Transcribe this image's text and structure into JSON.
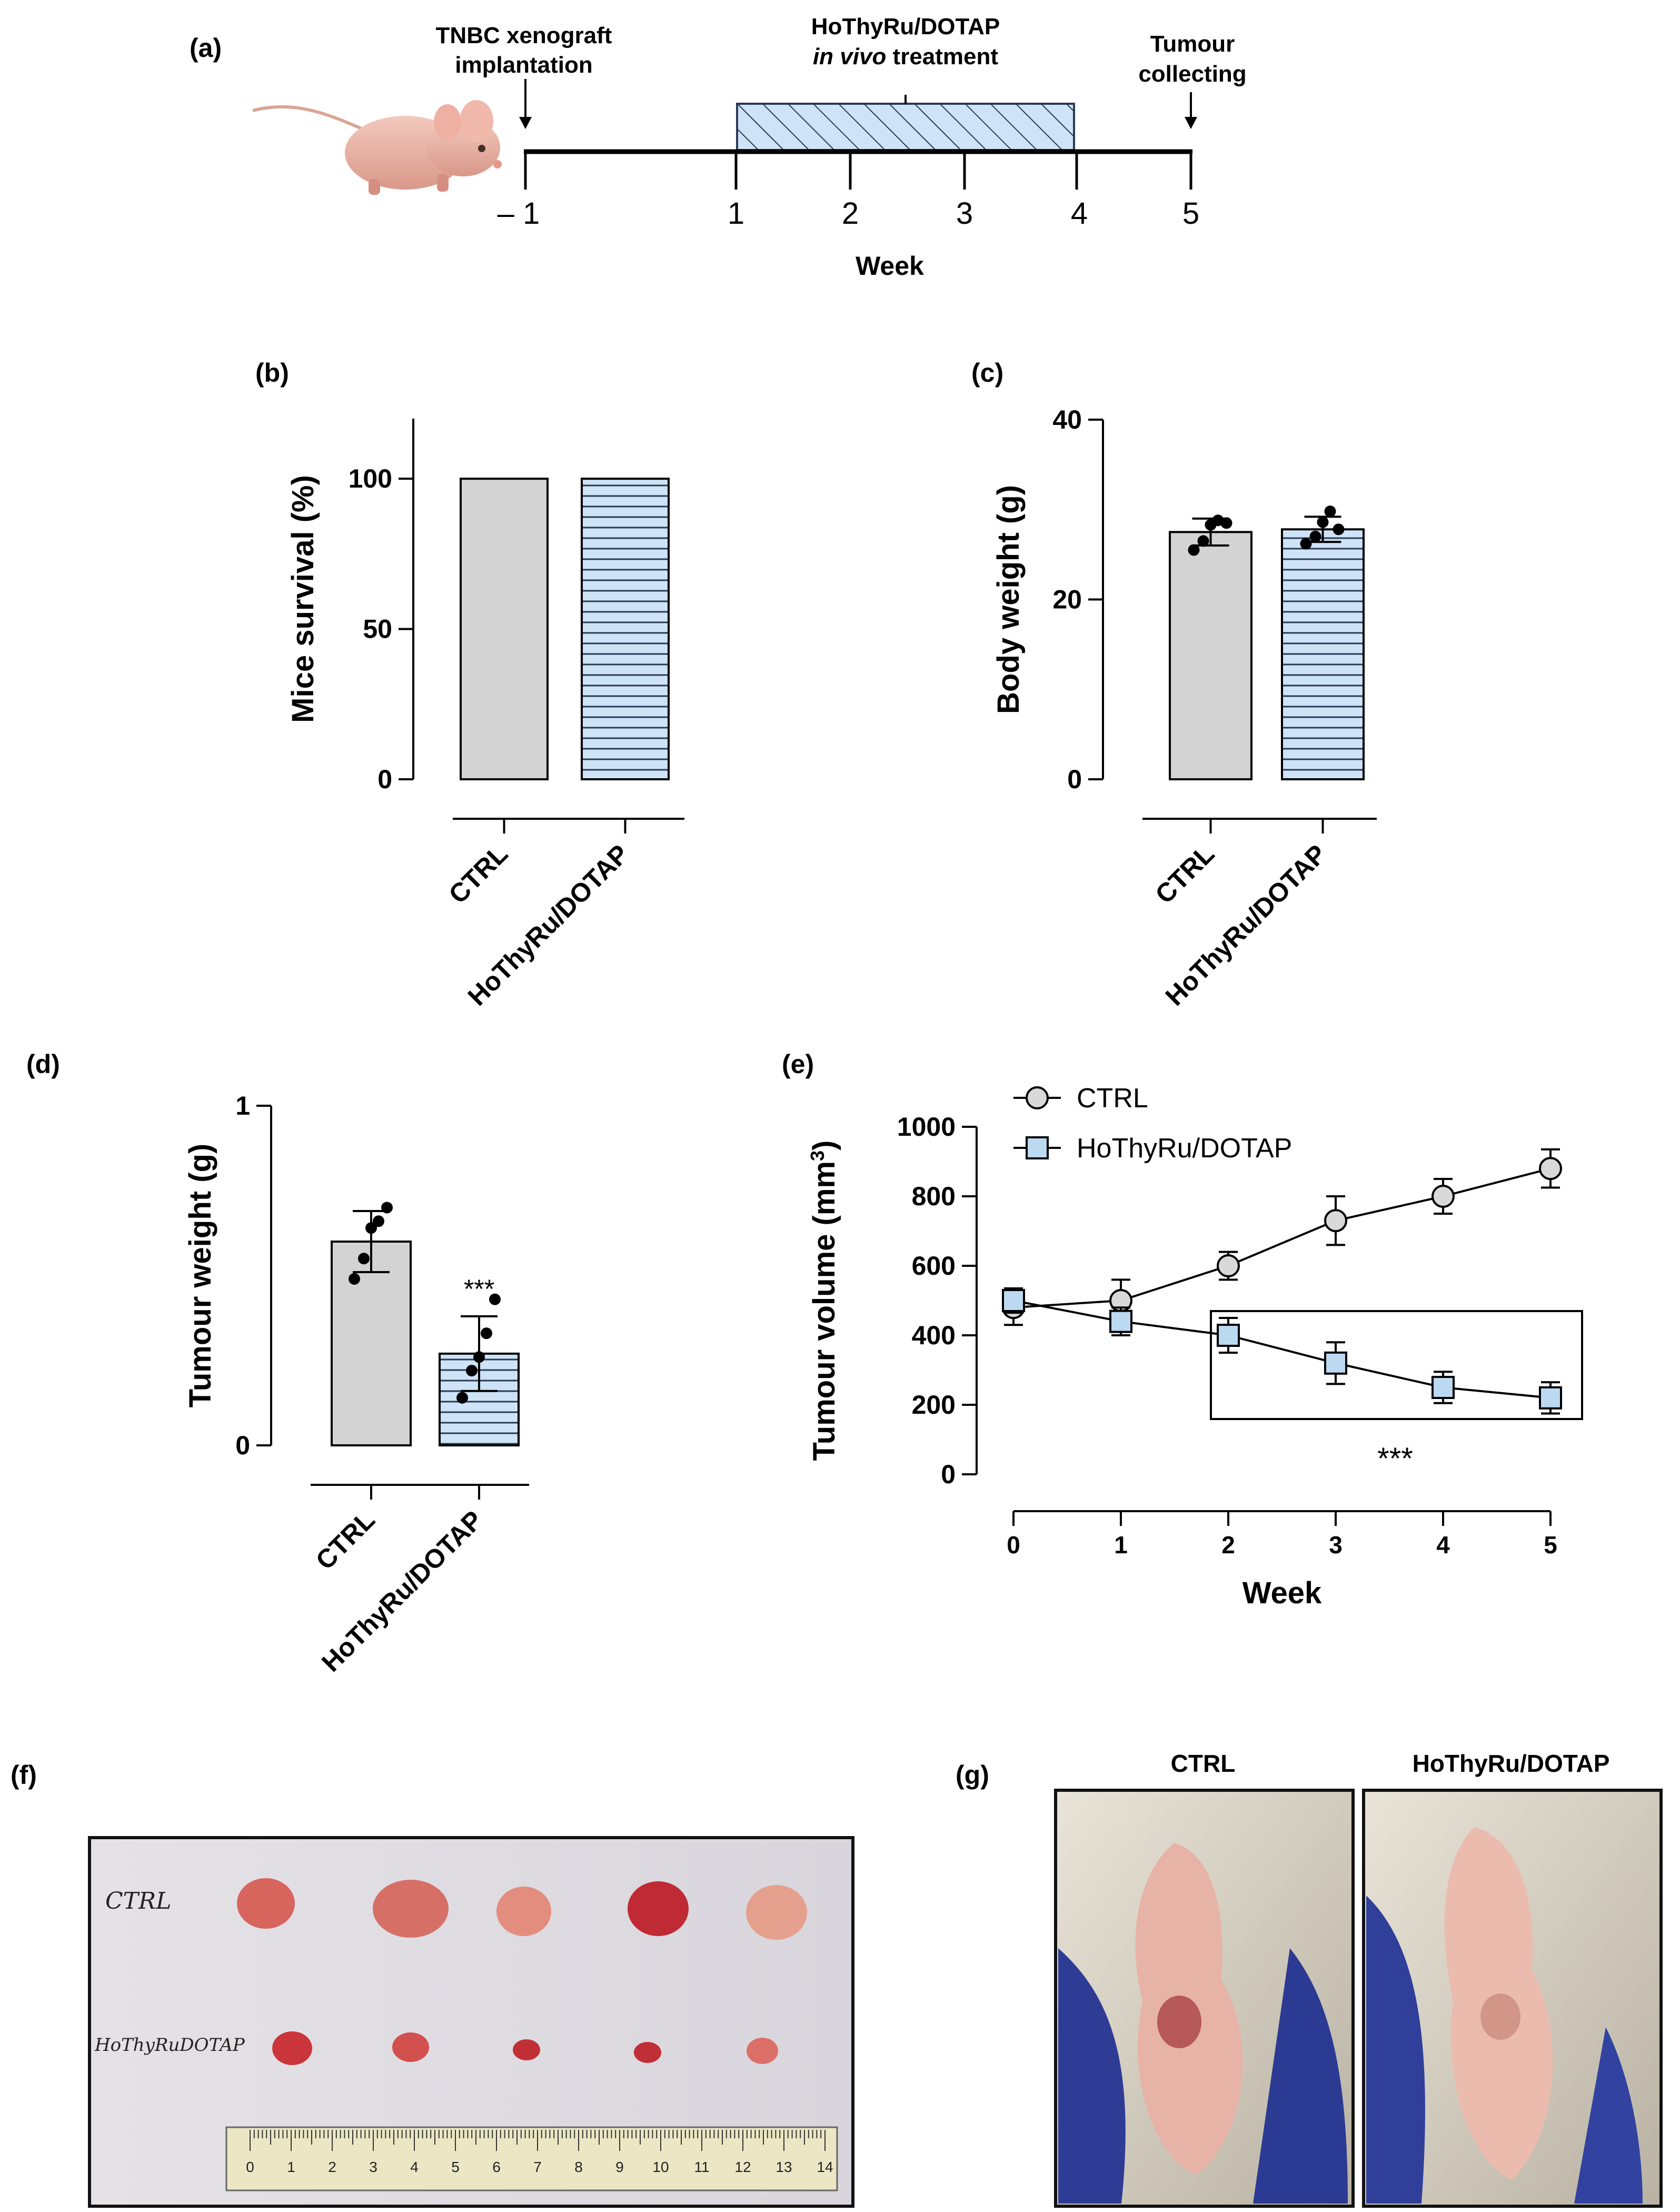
{
  "colors": {
    "ctrl_fill": "#d3d3d3",
    "treat_fill": "#cfe3f7",
    "stroke": "#000000",
    "ctrl_marker": "#d9d9d9",
    "treat_marker": "#bcd9f2"
  },
  "panel_a": {
    "label": "(a)",
    "annotation_implant": [
      "TNBC xenograft",
      "implantation"
    ],
    "annotation_treatment_line1": "HoThyRu/DOTAP",
    "annotation_treatment_italic": "in vivo",
    "annotation_treatment_rest": " treatment",
    "annotation_collect": [
      "Tumour",
      "collecting"
    ],
    "ticks": [
      "– 1",
      "1",
      "2",
      "3",
      "4",
      "5"
    ],
    "axis_label": "Week",
    "mouse_icon": "mouse-icon"
  },
  "panel_f": {
    "label": "(f)",
    "row_labels": [
      "CTRL",
      "HoThyRuDOTAP"
    ],
    "ruler_numbers": [
      "0",
      "1",
      "2",
      "3",
      "4",
      "5",
      "6",
      "7",
      "8",
      "9",
      "10",
      "11",
      "12",
      "13",
      "14"
    ]
  },
  "panel_g": {
    "label": "(g)",
    "captions": [
      "CTRL",
      "HoThyRu/DOTAP"
    ]
  },
  "chart_data": [
    {
      "panel": "(b)",
      "type": "bar",
      "title": "",
      "xlabel": "",
      "ylabel": "Mice survival (%)",
      "categories": [
        "CTRL",
        "HoThyRu/DOTAP"
      ],
      "values": [
        100,
        100
      ],
      "ylim": [
        0,
        120
      ],
      "yticks": [
        "0",
        "50",
        "100"
      ]
    },
    {
      "panel": "(c)",
      "type": "bar",
      "ylabel": "Body weight (g)",
      "categories": [
        "CTRL",
        "HoThyRu/DOTAP"
      ],
      "values": [
        27.5,
        27.8
      ],
      "error": [
        1.5,
        1.4
      ],
      "points": [
        [
          25.5,
          26.5,
          28.3,
          28.8,
          28.5
        ],
        [
          26.2,
          27.0,
          28.6,
          29.8,
          27.8
        ]
      ],
      "ylim": [
        0,
        40
      ],
      "yticks": [
        "0",
        "20",
        "40"
      ]
    },
    {
      "panel": "(d)",
      "type": "bar",
      "ylabel": "Tumour weight (g)",
      "categories": [
        "CTRL",
        "HoThyRu/DOTAP"
      ],
      "values": [
        0.6,
        0.27
      ],
      "error": [
        0.09,
        0.11
      ],
      "points": [
        [
          0.49,
          0.55,
          0.64,
          0.66,
          0.7
        ],
        [
          0.14,
          0.22,
          0.26,
          0.33,
          0.43
        ]
      ],
      "significance": "***",
      "ylim": [
        0,
        1
      ],
      "yticks": [
        "0",
        "1"
      ]
    },
    {
      "panel": "(e)",
      "type": "line",
      "xlabel": "Week",
      "ylabel": "Tumour volume (mm",
      "ylabel_sup": "3",
      "x": [
        0,
        1,
        2,
        3,
        4,
        5
      ],
      "xticks": [
        "0",
        "1",
        "2",
        "3",
        "4",
        "5"
      ],
      "yticks": [
        "0",
        "200",
        "400",
        "600",
        "800",
        "1000"
      ],
      "ylim": [
        0,
        1000
      ],
      "series": [
        {
          "name": "CTRL",
          "marker": "circle",
          "values": [
            480,
            500,
            600,
            730,
            800,
            880
          ],
          "error": [
            50,
            60,
            40,
            70,
            50,
            55
          ]
        },
        {
          "name": "HoThyRu/DOTAP",
          "marker": "square",
          "values": [
            500,
            440,
            400,
            320,
            250,
            220
          ],
          "error": [
            35,
            40,
            50,
            60,
            45,
            45
          ]
        }
      ],
      "significance": "***"
    }
  ]
}
